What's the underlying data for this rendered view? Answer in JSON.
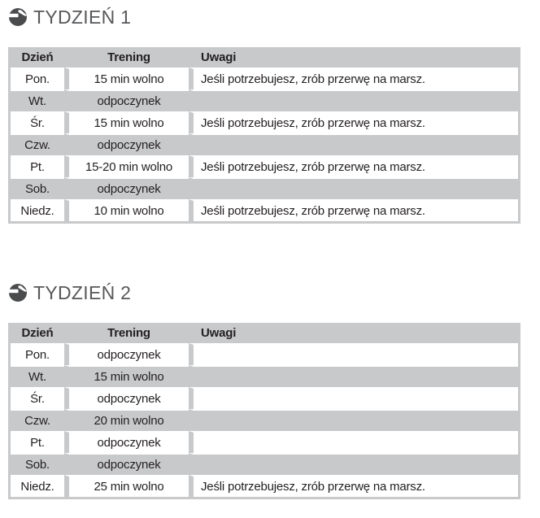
{
  "colors": {
    "table_stripe_gray": "#c8c9cb",
    "row_white": "#ffffff",
    "table_text": "#231f20",
    "heading_text": "#57585a",
    "icon_dark": "#4a4b4d"
  },
  "icons": {
    "heading_bullet": "circular-arrow-icon"
  },
  "sections": [
    {
      "heading": "TYDZIEŃ 1",
      "table": {
        "columns": [
          "Dzień",
          "Trening",
          "Uwagi"
        ],
        "rows": [
          {
            "day": "Pon.",
            "training": "15 min wolno",
            "notes": "Jeśli potrzebujesz, zrób przerwę na marsz."
          },
          {
            "day": "Wt.",
            "training": "odpoczynek",
            "notes": ""
          },
          {
            "day": "Śr.",
            "training": "15 min wolno",
            "notes": "Jeśli potrzebujesz, zrób przerwę na marsz."
          },
          {
            "day": "Czw.",
            "training": "odpoczynek",
            "notes": ""
          },
          {
            "day": "Pt.",
            "training": "15-20 min wolno",
            "notes": "Jeśli potrzebujesz, zrób przerwę na marsz."
          },
          {
            "day": "Sob.",
            "training": "odpoczynek",
            "notes": ""
          },
          {
            "day": "Niedz.",
            "training": "10 min wolno",
            "notes": "Jeśli potrzebujesz, zrób przerwę na marsz."
          }
        ]
      }
    },
    {
      "heading": "TYDZIEŃ 2",
      "table": {
        "columns": [
          "Dzień",
          "Trening",
          "Uwagi"
        ],
        "rows": [
          {
            "day": "Pon.",
            "training": "odpoczynek",
            "notes": ""
          },
          {
            "day": "Wt.",
            "training": "15 min wolno",
            "notes": ""
          },
          {
            "day": "Śr.",
            "training": "odpoczynek",
            "notes": ""
          },
          {
            "day": "Czw.",
            "training": "20 min wolno",
            "notes": ""
          },
          {
            "day": "Pt.",
            "training": "odpoczynek",
            "notes": ""
          },
          {
            "day": "Sob.",
            "training": "odpoczynek",
            "notes": ""
          },
          {
            "day": "Niedz.",
            "training": "25 min wolno",
            "notes": "Jeśli potrzebujesz, zrób przerwę na marsz."
          }
        ]
      }
    }
  ]
}
